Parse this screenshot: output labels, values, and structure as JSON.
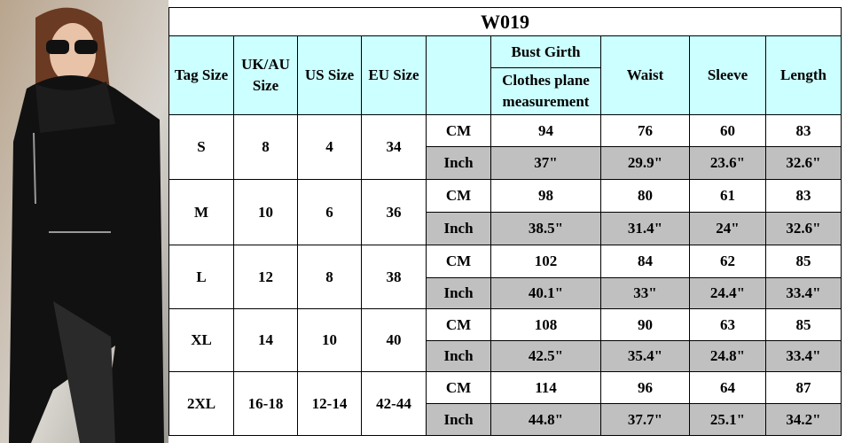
{
  "title": "W019",
  "header": {
    "tag_size": "Tag Size",
    "uk_au": "UK/AU Size",
    "us": "US Size",
    "eu": "EU Size",
    "bust_girth": "Bust Girth",
    "bust_note": "Clothes plane measurement",
    "waist": "Waist",
    "sleeve": "Sleeve",
    "length": "Length"
  },
  "sizes": [
    {
      "tag": "S",
      "uk_au": 8,
      "us": 4,
      "eu": 34,
      "cm": {
        "unit": "CM",
        "values": [
          94,
          76,
          60,
          83
        ]
      },
      "inch": {
        "unit": "Inch",
        "values": [
          "37\"",
          "29.9\"",
          "23.6\"",
          "32.6\""
        ]
      }
    },
    {
      "tag": "M",
      "uk_au": 10,
      "us": 6,
      "eu": 36,
      "cm": {
        "unit": "CM",
        "values": [
          98,
          80,
          61,
          83
        ]
      },
      "inch": {
        "unit": "Inch",
        "values": [
          "38.5\"",
          "31.4\"",
          "24\"",
          "32.6\""
        ]
      }
    },
    {
      "tag": "L",
      "uk_au": 12,
      "us": 8,
      "eu": 38,
      "cm": {
        "unit": "CM",
        "values": [
          102,
          84,
          62,
          85
        ]
      },
      "inch": {
        "unit": "Inch",
        "values": [
          "40.1\"",
          "33\"",
          "24.4\"",
          "33.4\""
        ]
      }
    },
    {
      "tag": "XL",
      "uk_au": 14,
      "us": 10,
      "eu": 40,
      "cm": {
        "unit": "CM",
        "values": [
          108,
          90,
          63,
          85
        ]
      },
      "inch": {
        "unit": "Inch",
        "values": [
          "42.5\"",
          "35.4\"",
          "24.8\"",
          "33.4\""
        ]
      }
    },
    {
      "tag": "2XL",
      "uk_au": "16-18",
      "us": "12-14",
      "eu": "42-44",
      "cm": {
        "unit": "CM",
        "values": [
          114,
          96,
          64,
          87
        ]
      },
      "inch": {
        "unit": "Inch",
        "values": [
          "44.8\"",
          "37.7\"",
          "25.1\"",
          "34.2\""
        ]
      }
    }
  ]
}
